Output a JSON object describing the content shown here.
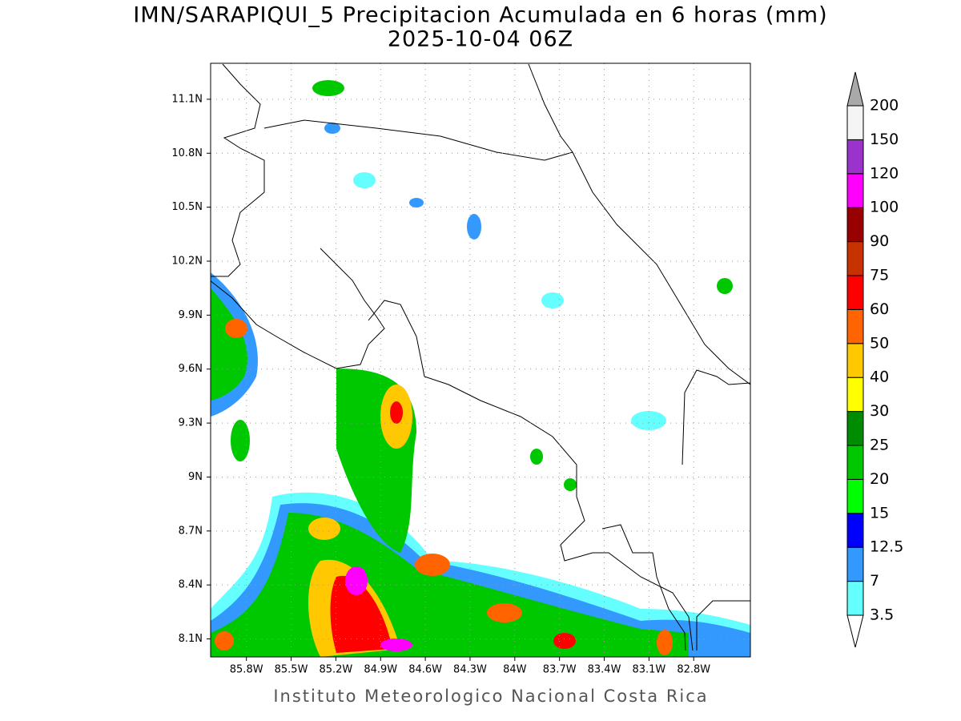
{
  "title": "IMN/SARAPIQUI_5 Precipitacion Acumulada en 6 horas (mm)",
  "subtitle": "2025-10-04 06Z",
  "footer": "Instituto Meteorologico Nacional Costa Rica",
  "map": {
    "xlim": [
      -86.04,
      -82.42
    ],
    "ylim": [
      8.0,
      11.3
    ],
    "lat_ticks": [
      {
        "value": 8.1,
        "label": "8.1N"
      },
      {
        "value": 8.4,
        "label": "8.4N"
      },
      {
        "value": 8.7,
        "label": "8.7N"
      },
      {
        "value": 9.0,
        "label": "9N"
      },
      {
        "value": 9.3,
        "label": "9.3N"
      },
      {
        "value": 9.6,
        "label": "9.6N"
      },
      {
        "value": 9.9,
        "label": "9.9N"
      },
      {
        "value": 10.2,
        "label": "10.2N"
      },
      {
        "value": 10.5,
        "label": "10.5N"
      },
      {
        "value": 10.8,
        "label": "10.8N"
      },
      {
        "value": 11.1,
        "label": "11.1N"
      }
    ],
    "lon_ticks": [
      {
        "value": -85.8,
        "label": "85.8W"
      },
      {
        "value": -85.5,
        "label": "85.5W"
      },
      {
        "value": -85.2,
        "label": "85.2W"
      },
      {
        "value": -84.9,
        "label": "84.9W"
      },
      {
        "value": -84.6,
        "label": "84.6W"
      },
      {
        "value": -84.3,
        "label": "84.3W"
      },
      {
        "value": -84.0,
        "label": "84W"
      },
      {
        "value": -83.7,
        "label": "83.7W"
      },
      {
        "value": -83.4,
        "label": "83.4W"
      },
      {
        "value": -83.1,
        "label": "83.1W"
      },
      {
        "value": -82.8,
        "label": "82.8W"
      }
    ]
  },
  "colorbar": {
    "levels": [
      3.5,
      7,
      12.5,
      15,
      20,
      25,
      30,
      40,
      50,
      60,
      75,
      90,
      100,
      120,
      150,
      200
    ],
    "colors": [
      "#ffffff",
      "#66ffff",
      "#3399ff",
      "#0000ff",
      "#00ff00",
      "#00c800",
      "#008c00",
      "#ffff00",
      "#ffc800",
      "#ff6400",
      "#ff0000",
      "#c83200",
      "#990000",
      "#ff00ff",
      "#9933cc",
      "#f5f5f5",
      "#a9a9a9"
    ]
  }
}
